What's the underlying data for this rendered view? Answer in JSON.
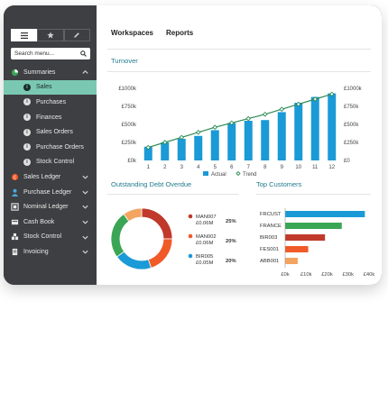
{
  "sidebar": {
    "toolbar": [
      {
        "name": "menu-icon",
        "active": true
      },
      {
        "name": "star-icon",
        "active": false
      },
      {
        "name": "pencil-icon",
        "active": false
      }
    ],
    "search": {
      "label": "Search menu...",
      "icon": "search-icon"
    },
    "items": [
      {
        "label": "Summaries",
        "icon": "summaries-icon",
        "level": 0,
        "chevron": "up"
      },
      {
        "label": "Sales",
        "icon": "info-icon",
        "level": 1,
        "active": true
      },
      {
        "label": "Purchases",
        "icon": "info-icon",
        "level": 1
      },
      {
        "label": "Finances",
        "icon": "info-icon",
        "level": 1
      },
      {
        "label": "Sales Orders",
        "icon": "info-icon",
        "level": 1
      },
      {
        "label": "Purchase Orders",
        "icon": "info-icon",
        "level": 1
      },
      {
        "label": "Stock Control",
        "icon": "info-icon",
        "level": 1
      },
      {
        "label": "Sales Ledger",
        "icon": "sales-ledger-icon",
        "level": 0,
        "chevron": "down"
      },
      {
        "label": "Purchase Ledger",
        "icon": "purchase-ledger-icon",
        "level": 0,
        "chevron": "down"
      },
      {
        "label": "Nominal Ledger",
        "icon": "nominal-ledger-icon",
        "level": 0,
        "chevron": "down"
      },
      {
        "label": "Cash Book",
        "icon": "cash-book-icon",
        "level": 0,
        "chevron": "down"
      },
      {
        "label": "Stock Control",
        "icon": "stock-control-icon",
        "level": 0,
        "chevron": "down"
      },
      {
        "label": "Invoicing",
        "icon": "invoicing-icon",
        "level": 0,
        "chevron": "down"
      }
    ]
  },
  "header": {
    "tabs": [
      "Workspaces",
      "Reports"
    ]
  },
  "turnover": {
    "title": "Turnover",
    "legend": [
      "Actual",
      "Trend"
    ]
  },
  "debt": {
    "title": "Outstanding Debt Overdue",
    "entries": [
      {
        "code": "MAN007",
        "amount": "£0.06M",
        "pct": "25%"
      },
      {
        "code": "MAN002",
        "amount": "£0.06M",
        "pct": "20%"
      },
      {
        "code": "BIR005",
        "amount": "£0.05M",
        "pct": "20%"
      }
    ]
  },
  "customers": {
    "title": "Top Customers"
  },
  "colors": {
    "bar": "#1a9ad6",
    "trend": "#2e8b57",
    "accent_title": "#1f7a8c",
    "active_nav": "#7ac8b2",
    "donut": [
      "#c0392b",
      "#f05a28",
      "#1a9ad6",
      "#3aa655",
      "#f4a460"
    ],
    "customers": [
      "#1a9ad6",
      "#3aa655",
      "#c0392b",
      "#f05a28",
      "#f4a460"
    ]
  },
  "chart_data": [
    {
      "type": "bar",
      "title": "Turnover",
      "categories": [
        "1",
        "2",
        "3",
        "4",
        "5",
        "6",
        "7",
        "8",
        "9",
        "10",
        "11",
        "12"
      ],
      "series": [
        {
          "name": "Actual",
          "values": [
            190,
            250,
            300,
            340,
            420,
            520,
            550,
            560,
            670,
            800,
            880,
            930
          ]
        },
        {
          "name": "Trend",
          "type": "line",
          "values": [
            180,
            250,
            320,
            390,
            460,
            520,
            580,
            640,
            710,
            780,
            850,
            920
          ]
        }
      ],
      "yticks_left": [
        "£0k",
        "£250k",
        "£500k",
        "£750k",
        "£1000k"
      ],
      "yticks_right": [
        "£0",
        "£250k",
        "£500k",
        "£750k",
        "£1000k"
      ],
      "ylim": [
        0,
        1000
      ],
      "legend_position": "bottom"
    },
    {
      "type": "pie",
      "title": "Outstanding Debt Overdue",
      "labels": [
        "MAN007",
        "MAN002",
        "BIR005",
        "",
        ""
      ],
      "values": [
        25,
        20,
        20,
        25,
        10
      ]
    },
    {
      "type": "bar",
      "orientation": "horizontal",
      "title": "Top Customers",
      "categories": [
        "FRCUST",
        "FRANCE",
        "BIR003",
        "FES001",
        "ABB001"
      ],
      "values": [
        38,
        27,
        19,
        11,
        6
      ],
      "xticks": [
        "£0k",
        "£10k",
        "£20k",
        "£30k",
        "£40k"
      ],
      "xlim": [
        0,
        40
      ]
    }
  ]
}
